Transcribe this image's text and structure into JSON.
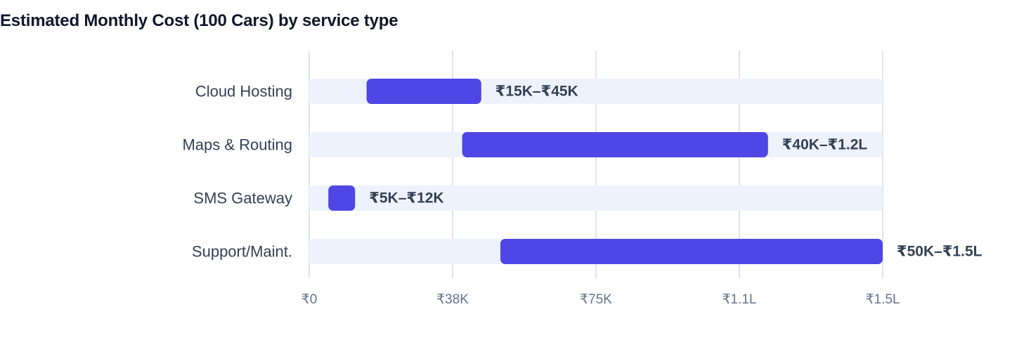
{
  "chart_data": {
    "type": "bar",
    "orientation": "horizontal",
    "range_bars": true,
    "title": "Estimated Monthly Cost (100 Cars) by service type",
    "xlabel": "",
    "ylabel": "",
    "xlim": [
      0,
      150000
    ],
    "grid": true,
    "legend": "none",
    "categories": [
      "Cloud Hosting",
      "Maps & Routing",
      "SMS Gateway",
      "Support/Maint."
    ],
    "ranges": [
      {
        "low": 15000,
        "high": 45000,
        "label": "₹15K–₹45K"
      },
      {
        "low": 40000,
        "high": 120000,
        "label": "₹40K–₹1.2L"
      },
      {
        "low": 5000,
        "high": 12000,
        "label": "₹5K–₹12K"
      },
      {
        "low": 50000,
        "high": 150000,
        "label": "₹50K–₹1.5L"
      }
    ],
    "x_ticks": [
      {
        "value": 0,
        "label": "₹0"
      },
      {
        "value": 37500,
        "label": "₹38K"
      },
      {
        "value": 75000,
        "label": "₹75K"
      },
      {
        "value": 112500,
        "label": "₹1.1L"
      },
      {
        "value": 150000,
        "label": "₹1.5L"
      }
    ]
  },
  "colors": {
    "bar": "#4f46e5",
    "track": "#eef2fd",
    "grid": "#e2e4e9",
    "title": "#0f172a",
    "text": "#334155",
    "tick": "#64748b"
  }
}
